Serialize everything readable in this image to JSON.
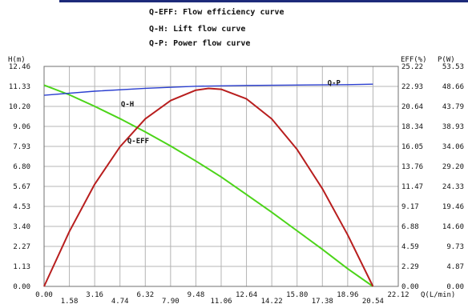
{
  "chart_data": {
    "type": "line",
    "legend_entries": [
      "Q-EFF: Flow efficiency curve",
      "Q-H: Lift flow curve",
      "Q-P: Power flow curve"
    ],
    "xlabel": "Q(L/min)",
    "y_left_label": "H(m)",
    "y_right_labels": [
      "EFF(%)",
      "P(W)"
    ],
    "xlim": [
      0,
      22.12
    ],
    "y_left_lim": [
      0,
      12.46
    ],
    "y_eff_lim": [
      0,
      25.22
    ],
    "y_power_lim": [
      0,
      53.53
    ],
    "x_ticks": [
      "0.00",
      "1.58",
      "3.16",
      "4.74",
      "6.32",
      "7.90",
      "9.48",
      "11.06",
      "12.64",
      "14.22",
      "15.80",
      "17.38",
      "18.96",
      "20.54",
      "22.12"
    ],
    "y_left_ticks": [
      "0.00",
      "1.13",
      "2.27",
      "3.40",
      "4.53",
      "5.67",
      "6.80",
      "7.93",
      "9.06",
      "10.20",
      "11.33",
      "12.46"
    ],
    "y_eff_ticks": [
      "0.00",
      "2.29",
      "4.59",
      "6.88",
      "9.17",
      "11.47",
      "13.76",
      "16.05",
      "18.34",
      "20.64",
      "22.93",
      "25.22"
    ],
    "y_power_ticks": [
      "0.00",
      "4.87",
      "9.73",
      "14.60",
      "19.46",
      "24.33",
      "29.20",
      "34.06",
      "38.93",
      "43.79",
      "48.66",
      "53.53"
    ],
    "grid": true,
    "series": [
      {
        "name": "Q-H",
        "color": "#4cd419",
        "axis": "left",
        "x": [
          0,
          1.58,
          3.16,
          4.74,
          6.32,
          7.9,
          9.48,
          11.06,
          12.64,
          14.22,
          15.8,
          17.38,
          18.96,
          20.54
        ],
        "y": [
          11.4,
          10.85,
          10.2,
          9.5,
          8.75,
          7.95,
          7.1,
          6.2,
          5.2,
          4.2,
          3.15,
          2.1,
          1.0,
          0.0
        ]
      },
      {
        "name": "Q-EFF",
        "color": "#b81e1e",
        "axis": "eff",
        "x": [
          0,
          1.58,
          3.16,
          4.74,
          6.32,
          7.9,
          9.48,
          10.27,
          11.06,
          12.64,
          14.22,
          15.8,
          17.38,
          18.96,
          20.54
        ],
        "y": [
          0.0,
          6.3,
          11.7,
          16.0,
          19.2,
          21.3,
          22.5,
          22.7,
          22.6,
          21.5,
          19.2,
          15.7,
          11.2,
          5.9,
          0.0
        ]
      },
      {
        "name": "Q-P",
        "color": "#2b3fd0",
        "axis": "power",
        "x": [
          0,
          3.16,
          6.32,
          9.48,
          12.64,
          15.8,
          18.96,
          20.54
        ],
        "y": [
          46.5,
          47.5,
          48.2,
          48.7,
          48.9,
          49.0,
          49.1,
          49.2
        ]
      }
    ]
  }
}
